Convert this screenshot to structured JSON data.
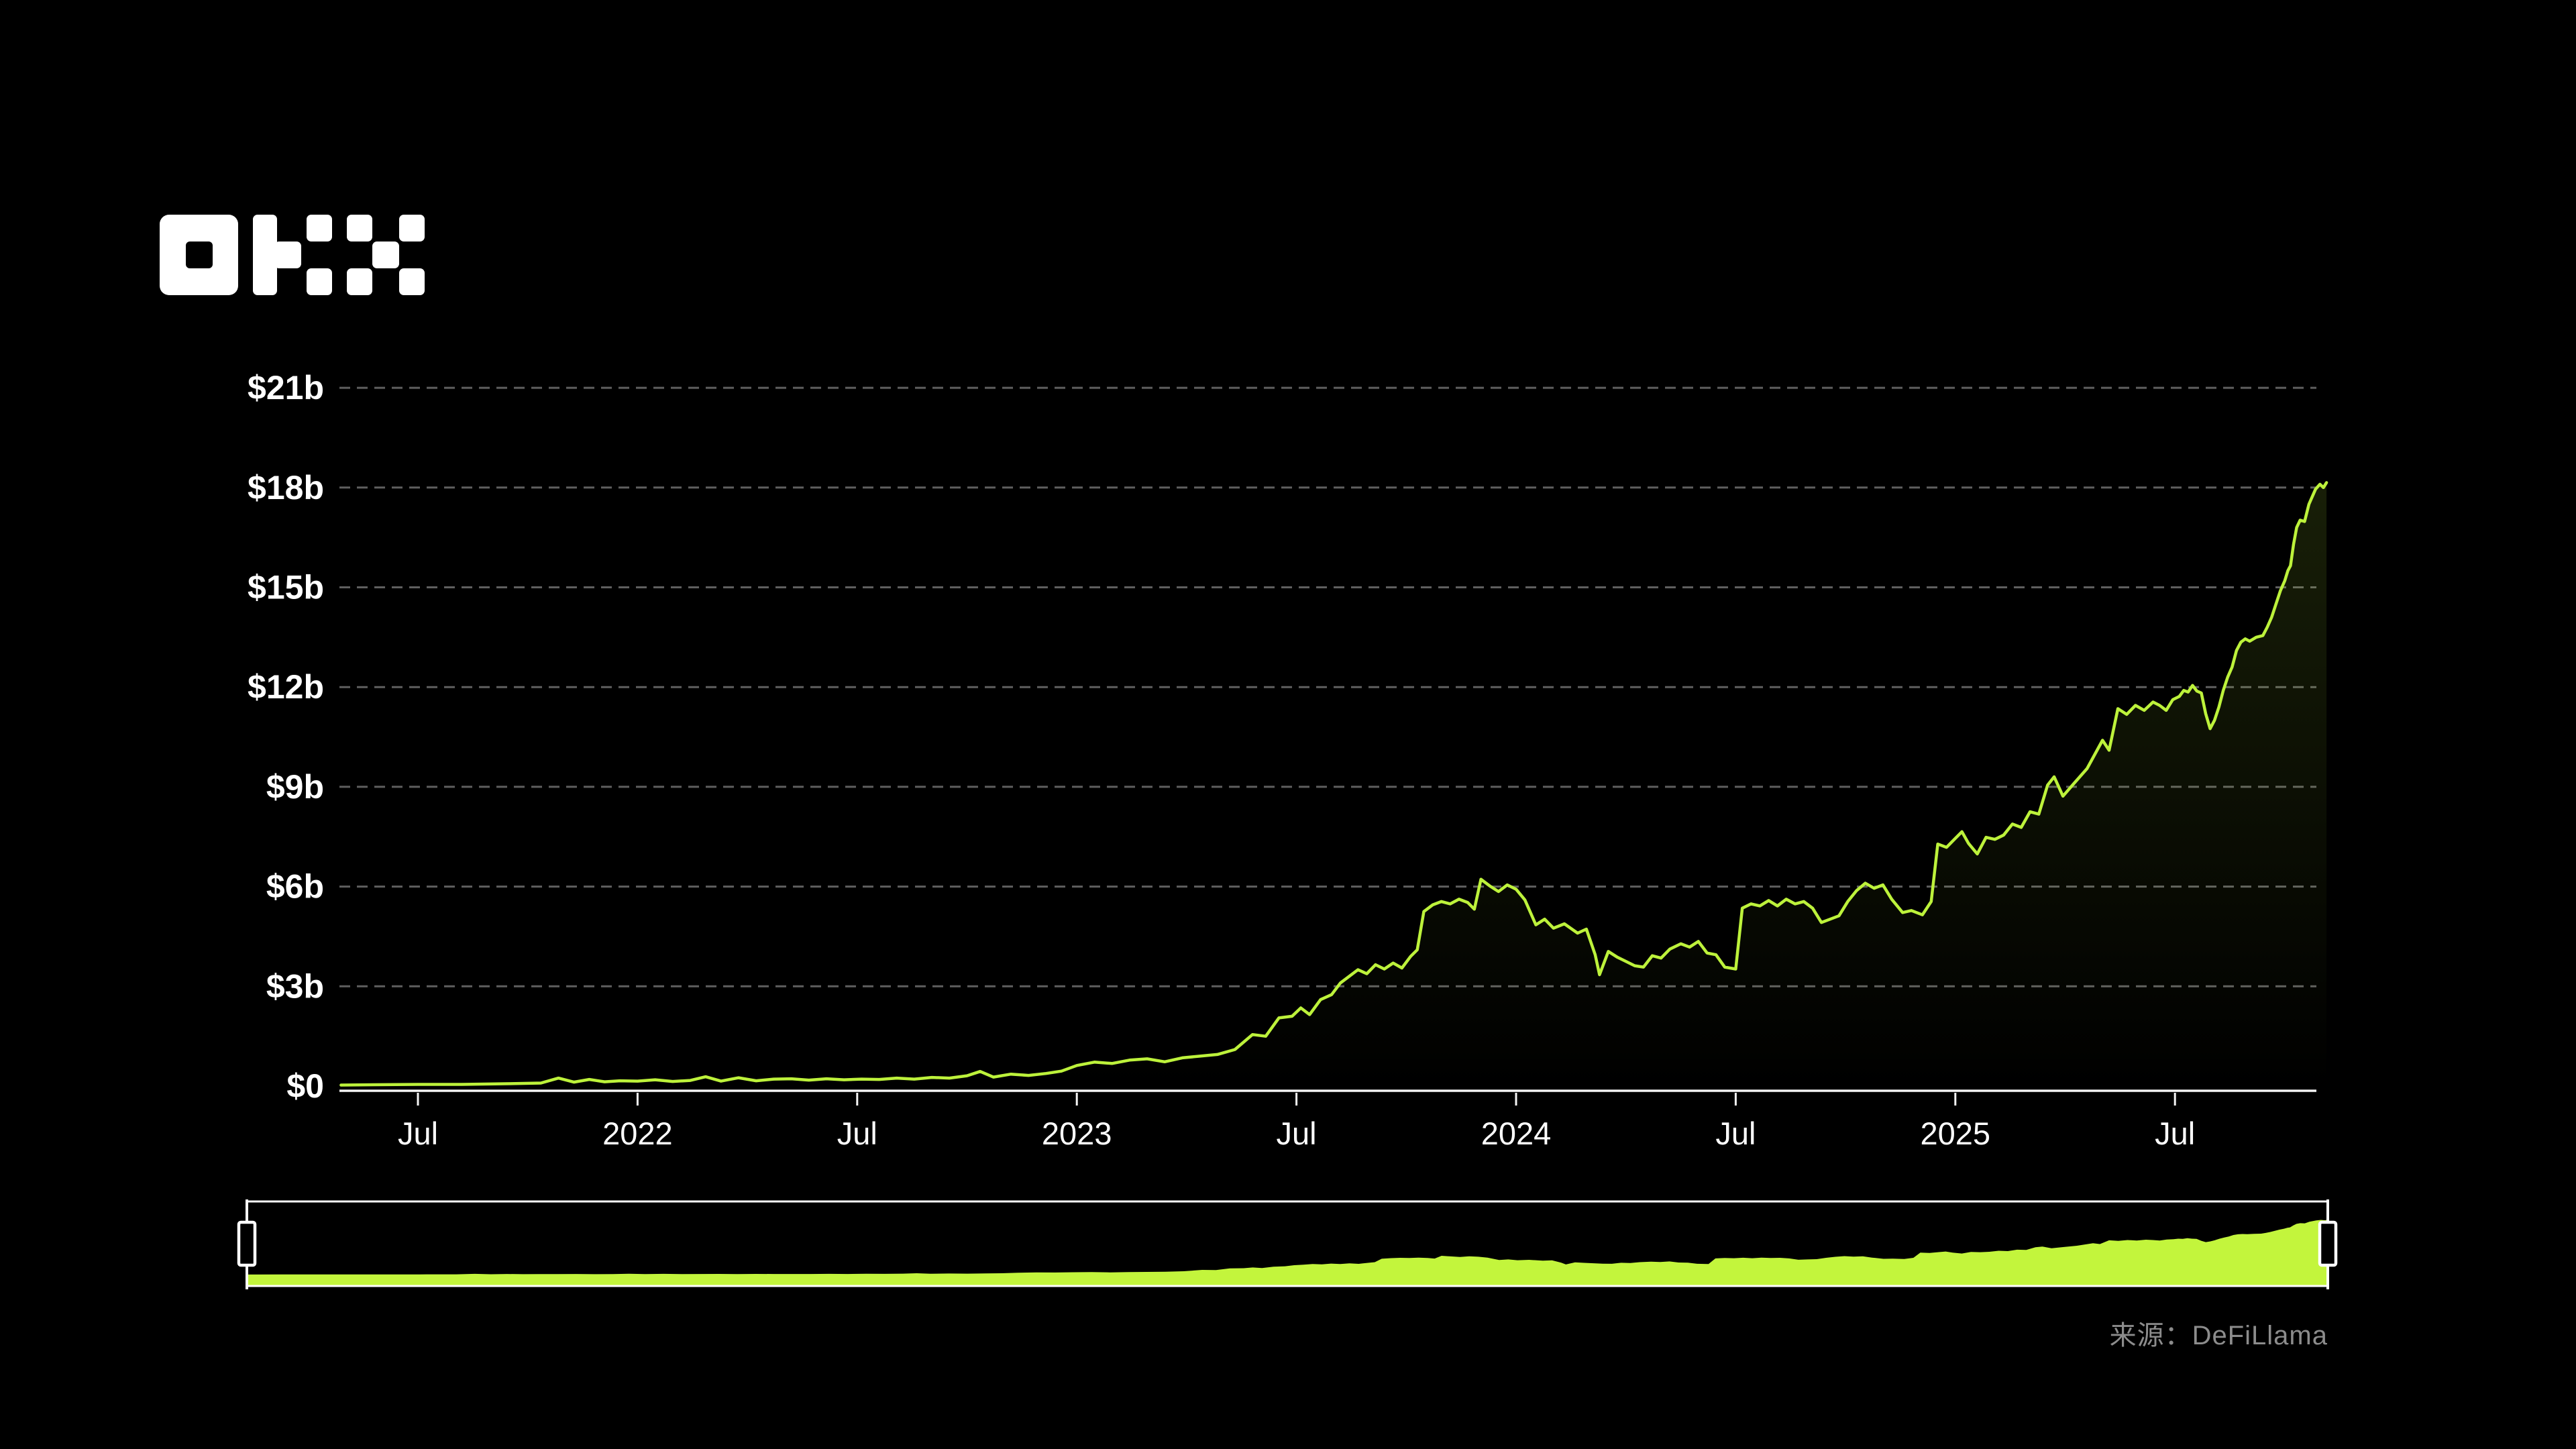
{
  "brand": {
    "name": "OKX"
  },
  "footer": {
    "source_label": "来源：",
    "source_value": "DeFiLlama"
  },
  "colors": {
    "background": "#000000",
    "line": "#bdf23b",
    "area_tint": "189,242,59",
    "minimap_fill": "#c3f53c",
    "grid": "#5f5f5f",
    "axis": "#f5f5f5",
    "tick_label": "#ffffff",
    "handle_stroke": "#ffffff",
    "handle_fill": "#000000",
    "source_text": "#8c8c8c",
    "logo": "#ffffff"
  },
  "chart_data": {
    "type": "area",
    "grid": "horizontal dashed",
    "legend": "none",
    "xlim": [
      2021.325,
      2025.845
    ],
    "ylim": [
      0,
      21.95
    ],
    "y_ticks": [
      {
        "label": "$21b",
        "value": 21
      },
      {
        "label": "$18b",
        "value": 18
      },
      {
        "label": "$15b",
        "value": 15
      },
      {
        "label": "$12b",
        "value": 12
      },
      {
        "label": "$9b",
        "value": 9
      },
      {
        "label": "$6b",
        "value": 6
      },
      {
        "label": "$3b",
        "value": 3
      },
      {
        "label": "$0",
        "value": 0
      }
    ],
    "x_ticks": [
      {
        "label": "Jul",
        "year": 2021.5
      },
      {
        "label": "2022",
        "year": 2022.0
      },
      {
        "label": "Jul",
        "year": 2022.5
      },
      {
        "label": "2023",
        "year": 2023.0
      },
      {
        "label": "Jul",
        "year": 2023.5
      },
      {
        "label": "2024",
        "year": 2024.0
      },
      {
        "label": "Jul",
        "year": 2024.5
      },
      {
        "label": "2025",
        "year": 2025.0
      },
      {
        "label": "Jul",
        "year": 2025.5
      }
    ],
    "unit": "USD billions (per $-b axis labels)",
    "series": [
      [
        2021.325,
        0.03
      ],
      [
        2021.4,
        0.04
      ],
      [
        2021.5,
        0.05
      ],
      [
        2021.6,
        0.05
      ],
      [
        2021.7,
        0.07
      ],
      [
        2021.78,
        0.09
      ],
      [
        2021.82,
        0.24
      ],
      [
        2021.855,
        0.12
      ],
      [
        2021.89,
        0.2
      ],
      [
        2021.925,
        0.13
      ],
      [
        2021.96,
        0.16
      ],
      [
        2022.0,
        0.15
      ],
      [
        2022.04,
        0.19
      ],
      [
        2022.08,
        0.14
      ],
      [
        2022.12,
        0.17
      ],
      [
        2022.155,
        0.28
      ],
      [
        2022.19,
        0.15
      ],
      [
        2022.23,
        0.25
      ],
      [
        2022.27,
        0.16
      ],
      [
        2022.31,
        0.21
      ],
      [
        2022.35,
        0.22
      ],
      [
        2022.39,
        0.18
      ],
      [
        2022.43,
        0.22
      ],
      [
        2022.47,
        0.19
      ],
      [
        2022.51,
        0.21
      ],
      [
        2022.55,
        0.2
      ],
      [
        2022.59,
        0.24
      ],
      [
        2022.63,
        0.21
      ],
      [
        2022.67,
        0.26
      ],
      [
        2022.71,
        0.24
      ],
      [
        2022.75,
        0.31
      ],
      [
        2022.78,
        0.44
      ],
      [
        2022.81,
        0.27
      ],
      [
        2022.85,
        0.36
      ],
      [
        2022.89,
        0.32
      ],
      [
        2022.93,
        0.38
      ],
      [
        2022.965,
        0.45
      ],
      [
        2023.0,
        0.62
      ],
      [
        2023.04,
        0.72
      ],
      [
        2023.08,
        0.68
      ],
      [
        2023.12,
        0.78
      ],
      [
        2023.16,
        0.82
      ],
      [
        2023.2,
        0.73
      ],
      [
        2023.24,
        0.85
      ],
      [
        2023.28,
        0.9
      ],
      [
        2023.32,
        0.95
      ],
      [
        2023.36,
        1.1
      ],
      [
        2023.4,
        1.55
      ],
      [
        2023.43,
        1.5
      ],
      [
        2023.46,
        2.05
      ],
      [
        2023.49,
        2.1
      ],
      [
        2023.51,
        2.35
      ],
      [
        2023.53,
        2.15
      ],
      [
        2023.555,
        2.6
      ],
      [
        2023.58,
        2.75
      ],
      [
        2023.6,
        3.1
      ],
      [
        2023.62,
        3.3
      ],
      [
        2023.64,
        3.5
      ],
      [
        2023.66,
        3.38
      ],
      [
        2023.68,
        3.65
      ],
      [
        2023.7,
        3.52
      ],
      [
        2023.72,
        3.7
      ],
      [
        2023.74,
        3.55
      ],
      [
        2023.76,
        3.9
      ],
      [
        2023.775,
        4.1
      ],
      [
        2023.79,
        5.25
      ],
      [
        2023.81,
        5.45
      ],
      [
        2023.83,
        5.55
      ],
      [
        2023.85,
        5.48
      ],
      [
        2023.87,
        5.62
      ],
      [
        2023.89,
        5.52
      ],
      [
        2023.905,
        5.32
      ],
      [
        2023.92,
        6.22
      ],
      [
        2023.94,
        6.02
      ],
      [
        2023.96,
        5.85
      ],
      [
        2023.98,
        6.05
      ],
      [
        2024.0,
        5.92
      ],
      [
        2024.02,
        5.6
      ],
      [
        2024.045,
        4.85
      ],
      [
        2024.065,
        5.02
      ],
      [
        2024.085,
        4.75
      ],
      [
        2024.11,
        4.88
      ],
      [
        2024.14,
        4.6
      ],
      [
        2024.16,
        4.72
      ],
      [
        2024.18,
        3.95
      ],
      [
        2024.19,
        3.35
      ],
      [
        2024.21,
        4.05
      ],
      [
        2024.23,
        3.88
      ],
      [
        2024.25,
        3.75
      ],
      [
        2024.27,
        3.62
      ],
      [
        2024.29,
        3.58
      ],
      [
        2024.31,
        3.92
      ],
      [
        2024.33,
        3.85
      ],
      [
        2024.35,
        4.12
      ],
      [
        2024.375,
        4.28
      ],
      [
        2024.395,
        4.18
      ],
      [
        2024.415,
        4.35
      ],
      [
        2024.435,
        4.0
      ],
      [
        2024.455,
        3.95
      ],
      [
        2024.475,
        3.58
      ],
      [
        2024.5,
        3.52
      ],
      [
        2024.515,
        5.35
      ],
      [
        2024.535,
        5.48
      ],
      [
        2024.555,
        5.42
      ],
      [
        2024.575,
        5.58
      ],
      [
        2024.595,
        5.42
      ],
      [
        2024.615,
        5.62
      ],
      [
        2024.635,
        5.48
      ],
      [
        2024.655,
        5.55
      ],
      [
        2024.675,
        5.35
      ],
      [
        2024.695,
        4.92
      ],
      [
        2024.715,
        5.02
      ],
      [
        2024.735,
        5.12
      ],
      [
        2024.755,
        5.55
      ],
      [
        2024.775,
        5.88
      ],
      [
        2024.795,
        6.1
      ],
      [
        2024.815,
        5.95
      ],
      [
        2024.835,
        6.05
      ],
      [
        2024.855,
        5.62
      ],
      [
        2024.88,
        5.22
      ],
      [
        2024.9,
        5.28
      ],
      [
        2024.925,
        5.15
      ],
      [
        2024.945,
        5.55
      ],
      [
        2024.96,
        7.28
      ],
      [
        2024.98,
        7.18
      ],
      [
        2025.0,
        7.45
      ],
      [
        2025.015,
        7.65
      ],
      [
        2025.03,
        7.3
      ],
      [
        2025.05,
        6.98
      ],
      [
        2025.07,
        7.48
      ],
      [
        2025.09,
        7.42
      ],
      [
        2025.11,
        7.55
      ],
      [
        2025.13,
        7.88
      ],
      [
        2025.15,
        7.78
      ],
      [
        2025.17,
        8.25
      ],
      [
        2025.19,
        8.18
      ],
      [
        2025.21,
        9.05
      ],
      [
        2025.225,
        9.3
      ],
      [
        2025.245,
        8.72
      ],
      [
        2025.27,
        9.1
      ],
      [
        2025.3,
        9.55
      ],
      [
        2025.335,
        10.4
      ],
      [
        2025.35,
        10.1
      ],
      [
        2025.37,
        11.35
      ],
      [
        2025.39,
        11.18
      ],
      [
        2025.41,
        11.45
      ],
      [
        2025.43,
        11.3
      ],
      [
        2025.45,
        11.55
      ],
      [
        2025.465,
        11.45
      ],
      [
        2025.48,
        11.3
      ],
      [
        2025.495,
        11.62
      ],
      [
        2025.51,
        11.72
      ],
      [
        2025.52,
        11.9
      ],
      [
        2025.53,
        11.85
      ],
      [
        2025.54,
        12.05
      ],
      [
        2025.55,
        11.88
      ],
      [
        2025.56,
        11.82
      ],
      [
        2025.57,
        11.2
      ],
      [
        2025.58,
        10.75
      ],
      [
        2025.59,
        11.0
      ],
      [
        2025.6,
        11.4
      ],
      [
        2025.61,
        11.9
      ],
      [
        2025.62,
        12.3
      ],
      [
        2025.63,
        12.6
      ],
      [
        2025.64,
        13.1
      ],
      [
        2025.65,
        13.35
      ],
      [
        2025.66,
        13.45
      ],
      [
        2025.67,
        13.38
      ],
      [
        2025.685,
        13.5
      ],
      [
        2025.7,
        13.55
      ],
      [
        2025.71,
        13.8
      ],
      [
        2025.72,
        14.1
      ],
      [
        2025.73,
        14.5
      ],
      [
        2025.74,
        14.9
      ],
      [
        2025.75,
        15.2
      ],
      [
        2025.757,
        15.5
      ],
      [
        2025.763,
        15.65
      ],
      [
        2025.77,
        16.3
      ],
      [
        2025.777,
        16.8
      ],
      [
        2025.785,
        17.02
      ],
      [
        2025.795,
        16.98
      ],
      [
        2025.805,
        17.5
      ],
      [
        2025.82,
        17.95
      ],
      [
        2025.83,
        18.1
      ],
      [
        2025.838,
        18.0
      ],
      [
        2025.845,
        18.15
      ]
    ],
    "minimap": {
      "description": "full-range brush strip below main chart showing same series as solid green area",
      "window": "entire range selected (handles at both ends)"
    }
  }
}
